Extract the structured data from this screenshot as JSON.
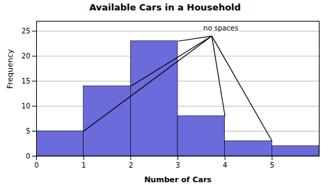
{
  "chart_data": {
    "type": "histogram",
    "title": "Available Cars in a Household",
    "xlabel": "Number of Cars",
    "ylabel": "Frequency",
    "bins": [
      0,
      1,
      2,
      3,
      4,
      5,
      6
    ],
    "values": [
      5,
      14,
      23,
      8,
      3,
      2
    ],
    "color": "#6b6bdb",
    "xlim": [
      0,
      6
    ],
    "xticks": [
      0,
      1,
      2,
      3,
      4,
      5
    ],
    "ylim": [
      0,
      27
    ],
    "yticks": [
      0,
      5,
      10,
      15,
      20,
      25
    ],
    "grid": true,
    "annotations": [
      "no spaces"
    ]
  }
}
